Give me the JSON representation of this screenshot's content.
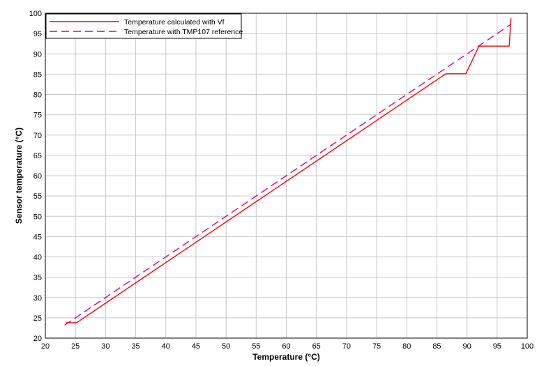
{
  "chart_data": {
    "type": "line",
    "xlabel": "Temperature (°C)",
    "ylabel": "Sensor temperature (°C)",
    "xlim": [
      20,
      100
    ],
    "ylim": [
      20,
      100
    ],
    "x_ticks": [
      20,
      25,
      30,
      35,
      40,
      45,
      50,
      55,
      60,
      65,
      70,
      75,
      80,
      85,
      90,
      95,
      100
    ],
    "y_ticks": [
      20,
      25,
      30,
      35,
      40,
      45,
      50,
      55,
      60,
      65,
      70,
      75,
      80,
      85,
      90,
      95,
      100
    ],
    "grid": true,
    "legend_position": "top-left",
    "series": [
      {
        "name": "Temperature calculated with Vf",
        "color": "#ff0000",
        "dash": "solid",
        "points": [
          [
            23.4,
            23.8
          ],
          [
            25.2,
            23.8
          ],
          [
            86.5,
            85.1
          ],
          [
            89.8,
            85.1
          ],
          [
            92.0,
            91.9
          ],
          [
            97.0,
            91.9
          ],
          [
            97.3,
            98.8
          ]
        ]
      },
      {
        "name": "Temperature with TMP107 reference",
        "color": "#e0007a",
        "dash": "dashed",
        "points": [
          [
            23.2,
            23.2
          ],
          [
            97.3,
            97.3
          ]
        ]
      }
    ]
  }
}
